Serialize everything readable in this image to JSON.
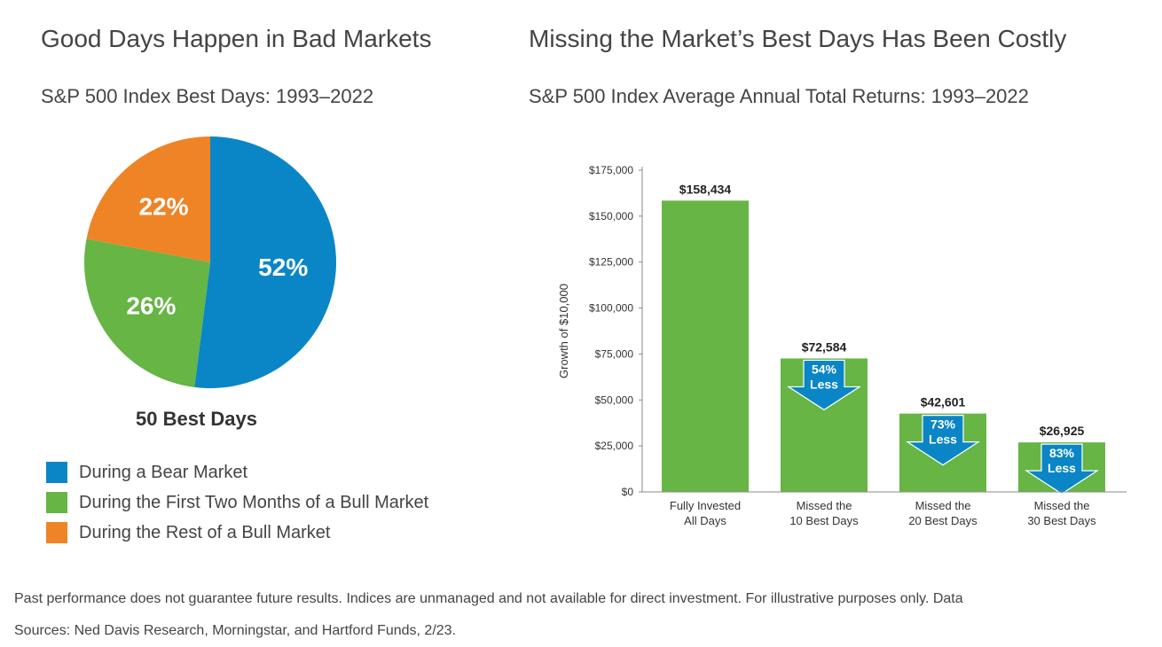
{
  "left_panel": {
    "title": "Good Days Happen in Bad Markets",
    "subtitle": "S&P 500 Index Best Days: 1993–2022",
    "pie_caption": "50 Best Days"
  },
  "right_panel": {
    "title": "Missing the Market’s Best Days Has Been Costly",
    "subtitle": "S&P 500 Index Average Annual Total Returns: 1993–2022"
  },
  "footnote": {
    "line1": "Past performance does not guarantee future results. Indices are unmanaged and not available for direct investment. For illustrative purposes only. Data",
    "line2": "Sources: Ned Davis Research, Morningstar, and Hartford Funds, 2/23."
  },
  "chart_data": [
    {
      "type": "pie",
      "title": "Good Days Happen in Bad Markets",
      "subtitle": "S&P 500 Index Best Days: 1993–2022",
      "caption": "50 Best Days",
      "slices": [
        {
          "name": "During a Bear Market",
          "value": 52,
          "label": "52%",
          "color": "#0a86c6"
        },
        {
          "name": "During the First Two Months of a Bull Market",
          "value": 26,
          "label": "26%",
          "color": "#66b545"
        },
        {
          "name": "During the Rest of a Bull Market",
          "value": 22,
          "label": "22%",
          "color": "#ee8426"
        }
      ],
      "legend_position": "bottom-left"
    },
    {
      "type": "bar",
      "title": "Missing the Market’s Best Days Has Been Costly",
      "subtitle": "S&P 500 Index Average Annual Total Returns: 1993–2022",
      "ylabel": "Growth of $10,000",
      "ylim": [
        0,
        175000
      ],
      "yticks": [
        0,
        25000,
        50000,
        75000,
        100000,
        125000,
        150000,
        175000
      ],
      "ytick_labels": [
        "$0",
        "$25,000",
        "$50,000",
        "$75,000",
        "$100,000",
        "$125,000",
        "$150,000",
        "$175,000"
      ],
      "categories": [
        [
          "Fully Invested",
          "All Days"
        ],
        [
          "Missed the",
          "10 Best Days"
        ],
        [
          "Missed the",
          "20 Best Days"
        ],
        [
          "Missed the",
          "30 Best Days"
        ]
      ],
      "values": [
        158434,
        72584,
        42601,
        26925
      ],
      "value_labels": [
        "$158,434",
        "$72,584",
        "$42,601",
        "$26,925"
      ],
      "annotations": [
        null,
        {
          "pct": "54%",
          "text": "Less"
        },
        {
          "pct": "73%",
          "text": "Less"
        },
        {
          "pct": "83%",
          "text": "Less"
        }
      ],
      "bar_color": "#66b545",
      "arrow_color": "#0a86c6",
      "grid": false
    }
  ]
}
